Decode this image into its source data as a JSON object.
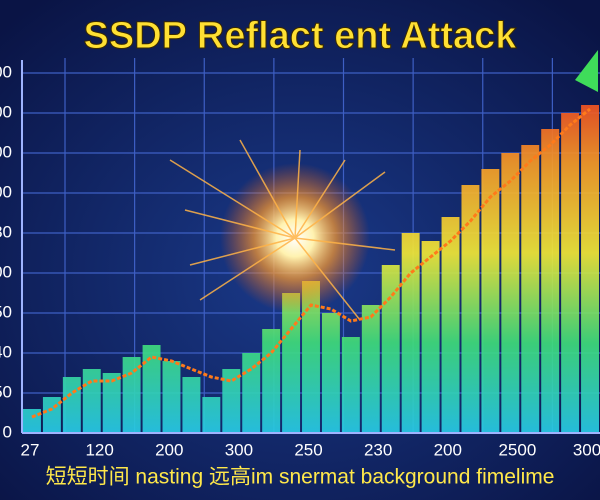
{
  "chart_data": {
    "type": "bar",
    "title": "SSDP Reflact ent Attack",
    "footer": "短短时间 nasting 远高im snermat background fimelime",
    "x_labels": [
      "27",
      "120",
      "200",
      "300",
      "250",
      "230",
      "200",
      "2500",
      "300"
    ],
    "ylim": [
      0,
      9
    ],
    "yticks": [
      {
        "value": 0,
        "label": "0"
      },
      {
        "value": 1,
        "label": "50"
      },
      {
        "value": 2,
        "label": "40"
      },
      {
        "value": 3,
        "label": "50"
      },
      {
        "value": 4,
        "label": "00"
      },
      {
        "value": 5,
        "label": "30"
      },
      {
        "value": 6,
        "label": "00"
      },
      {
        "value": 7,
        "label": "00"
      },
      {
        "value": 8,
        "label": "00"
      },
      {
        "value": 9,
        "label": "00"
      }
    ],
    "grid": true,
    "colors": [
      "#27c9e6",
      "#3fdc7a",
      "#f2e836",
      "#f79a26",
      "#ef2d1f"
    ],
    "values": [
      0.6,
      0.9,
      1.4,
      1.6,
      1.5,
      1.9,
      2.2,
      1.8,
      1.4,
      0.9,
      1.6,
      2.0,
      2.6,
      3.5,
      3.8,
      3.0,
      2.4,
      3.2,
      4.2,
      5.0,
      4.8,
      5.4,
      6.2,
      6.6,
      7.0,
      7.2,
      7.6,
      8.0,
      8.2
    ],
    "trend": {
      "color": "#ff7a1a",
      "values": [
        0.4,
        0.6,
        1.0,
        1.3,
        1.3,
        1.5,
        1.9,
        1.8,
        1.6,
        1.4,
        1.3,
        1.6,
        2.0,
        2.6,
        3.2,
        3.1,
        2.8,
        2.9,
        3.4,
        4.0,
        4.4,
        4.8,
        5.3,
        5.9,
        6.3,
        6.8,
        7.2,
        7.7,
        8.1
      ]
    }
  }
}
